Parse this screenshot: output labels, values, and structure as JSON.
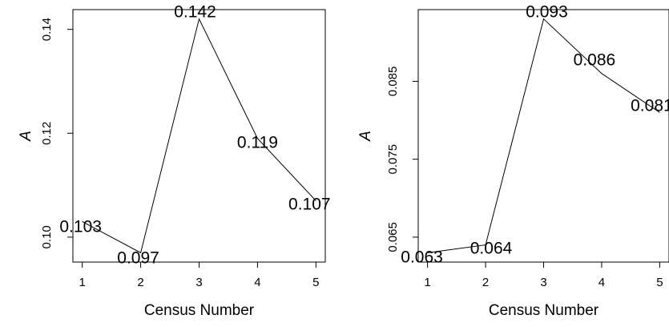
{
  "chart_data": [
    {
      "type": "line",
      "xlabel": "Census Number",
      "ylabel": "A",
      "x": [
        1,
        2,
        3,
        4,
        5
      ],
      "values": [
        0.103,
        0.097,
        0.142,
        0.119,
        0.107
      ],
      "point_labels": [
        "0.103",
        "0.097",
        "0.142",
        "0.119",
        "0.107"
      ],
      "xticks": [
        "1",
        "2",
        "3",
        "4",
        "5"
      ],
      "yticks": [
        0.1,
        0.12,
        0.14
      ],
      "ytick_labels": [
        "0.10",
        "0.12",
        "0.14"
      ],
      "xlim": [
        0.84,
        5.16
      ],
      "ylim": [
        0.0952,
        0.1438
      ]
    },
    {
      "type": "line",
      "xlabel": "Census Number",
      "ylabel": "A",
      "x": [
        1,
        2,
        3,
        4,
        5
      ],
      "values": [
        0.063,
        0.064,
        0.093,
        0.086,
        0.081
      ],
      "point_labels": [
        "0.063",
        "0.064",
        "0.093",
        "0.086",
        "0.081"
      ],
      "xticks": [
        "1",
        "2",
        "3",
        "4",
        "5"
      ],
      "yticks": [
        0.065,
        0.075,
        0.085
      ],
      "ytick_labels": [
        "0.065",
        "0.075",
        "0.085"
      ],
      "xlim": [
        0.84,
        5.16
      ],
      "ylim": [
        0.0618,
        0.0942
      ]
    }
  ]
}
